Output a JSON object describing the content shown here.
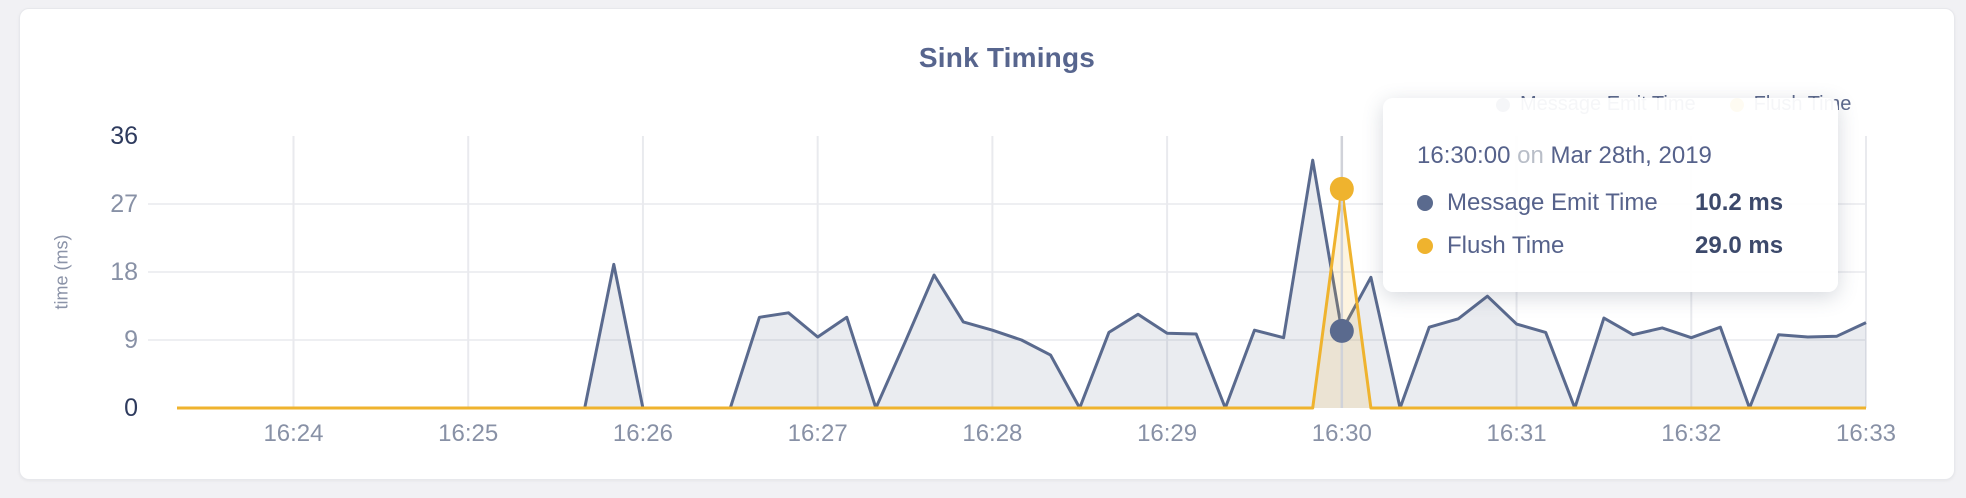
{
  "colors": {
    "emit_line": "#5a6a8e",
    "emit_fill": "rgba(90,106,142,0.13)",
    "flush_line": "#efb32e",
    "flush_fill": "rgba(239,179,46,0.15)",
    "grid": "#e9eaee",
    "hover_line": "#d0d2d9",
    "tick_gray": "#8891a6",
    "tick_dark": "#2e3b5e",
    "title": "#57658e"
  },
  "legend": {
    "items": [
      {
        "label": "Message Emit Time",
        "color": "#5a6a8e"
      },
      {
        "label": "Flush Time",
        "color": "#efb32e"
      }
    ]
  },
  "tooltip": {
    "time": "16:30:00",
    "connector": "on",
    "date": "Mar 28th, 2019",
    "rows": [
      {
        "label": "Message Emit Time",
        "value": "10.2 ms",
        "color": "#5a6a8e"
      },
      {
        "label": "Flush Time",
        "value": "29.0 ms",
        "color": "#efb32e"
      }
    ]
  },
  "chart_data": {
    "type": "area",
    "title": "Sink Timings",
    "xlabel": "",
    "ylabel": "time (ms)",
    "ylim": [
      0,
      36
    ],
    "grid": true,
    "legend_position": "top-right",
    "x": [
      "16:23:20",
      "16:23:30",
      "16:23:40",
      "16:23:50",
      "16:24:00",
      "16:24:10",
      "16:24:20",
      "16:24:30",
      "16:24:40",
      "16:24:50",
      "16:25:00",
      "16:25:10",
      "16:25:20",
      "16:25:30",
      "16:25:40",
      "16:25:50",
      "16:26:00",
      "16:26:10",
      "16:26:20",
      "16:26:30",
      "16:26:40",
      "16:26:50",
      "16:27:00",
      "16:27:10",
      "16:27:20",
      "16:27:30",
      "16:27:40",
      "16:27:50",
      "16:28:00",
      "16:28:10",
      "16:28:20",
      "16:28:30",
      "16:28:40",
      "16:28:50",
      "16:29:00",
      "16:29:10",
      "16:29:20",
      "16:29:30",
      "16:29:40",
      "16:29:50",
      "16:30:00",
      "16:30:10",
      "16:30:20",
      "16:30:30",
      "16:30:40",
      "16:30:50",
      "16:31:00",
      "16:31:10",
      "16:31:20",
      "16:31:30",
      "16:31:40",
      "16:31:50",
      "16:32:00",
      "16:32:10",
      "16:32:20",
      "16:32:30",
      "16:32:40",
      "16:32:50",
      "16:33:00"
    ],
    "series": [
      {
        "name": "Message Emit Time",
        "color": "#5a6a8e",
        "fill": "rgba(90,106,142,0.13)",
        "values": [
          0,
          0,
          0,
          0,
          0,
          0,
          0,
          0,
          0,
          0,
          0,
          0,
          0,
          0,
          0,
          19.0,
          0,
          0,
          0,
          0,
          12.0,
          12.6,
          9.4,
          12.0,
          0,
          8.7,
          17.6,
          11.4,
          10.3,
          9.0,
          7.0,
          0,
          10.0,
          12.4,
          9.9,
          9.8,
          0,
          10.3,
          9.3,
          32.8,
          10.2,
          17.3,
          0,
          10.7,
          11.8,
          14.8,
          11.1,
          10.0,
          0,
          11.9,
          9.7,
          10.6,
          9.3,
          10.7,
          0,
          9.7,
          9.4,
          9.5,
          11.3
        ]
      },
      {
        "name": "Flush Time",
        "color": "#efb32e",
        "fill": "rgba(239,179,46,0.15)",
        "values": [
          0,
          0,
          0,
          0,
          0,
          0,
          0,
          0,
          0,
          0,
          0,
          0,
          0,
          0,
          0,
          0,
          0,
          0,
          0,
          0,
          0,
          0,
          0,
          0,
          0,
          0,
          0,
          0,
          0,
          0,
          0,
          0,
          0,
          0,
          0,
          0,
          0,
          0,
          0,
          0,
          29.0,
          0,
          0,
          0,
          0,
          0,
          0,
          0,
          0,
          0,
          0,
          0,
          0,
          0,
          0,
          0,
          0,
          0,
          0
        ]
      }
    ],
    "x_tick_indices": [
      4,
      10,
      16,
      22,
      28,
      34,
      40,
      46,
      52,
      58
    ],
    "x_tick_labels": [
      "16:24",
      "16:25",
      "16:26",
      "16:27",
      "16:28",
      "16:29",
      "16:30",
      "16:31",
      "16:32",
      "16:33"
    ],
    "y_ticks": [
      {
        "label": "36",
        "value": 36,
        "emphasis": true
      },
      {
        "label": "27",
        "value": 27,
        "emphasis": false
      },
      {
        "label": "18",
        "value": 18,
        "emphasis": false
      },
      {
        "label": "9",
        "value": 9,
        "emphasis": false
      },
      {
        "label": "0",
        "value": 0,
        "emphasis": true
      }
    ],
    "grid_y_values": [
      9,
      18,
      27
    ],
    "hover": {
      "index": 40,
      "time": "16:30:00"
    }
  }
}
